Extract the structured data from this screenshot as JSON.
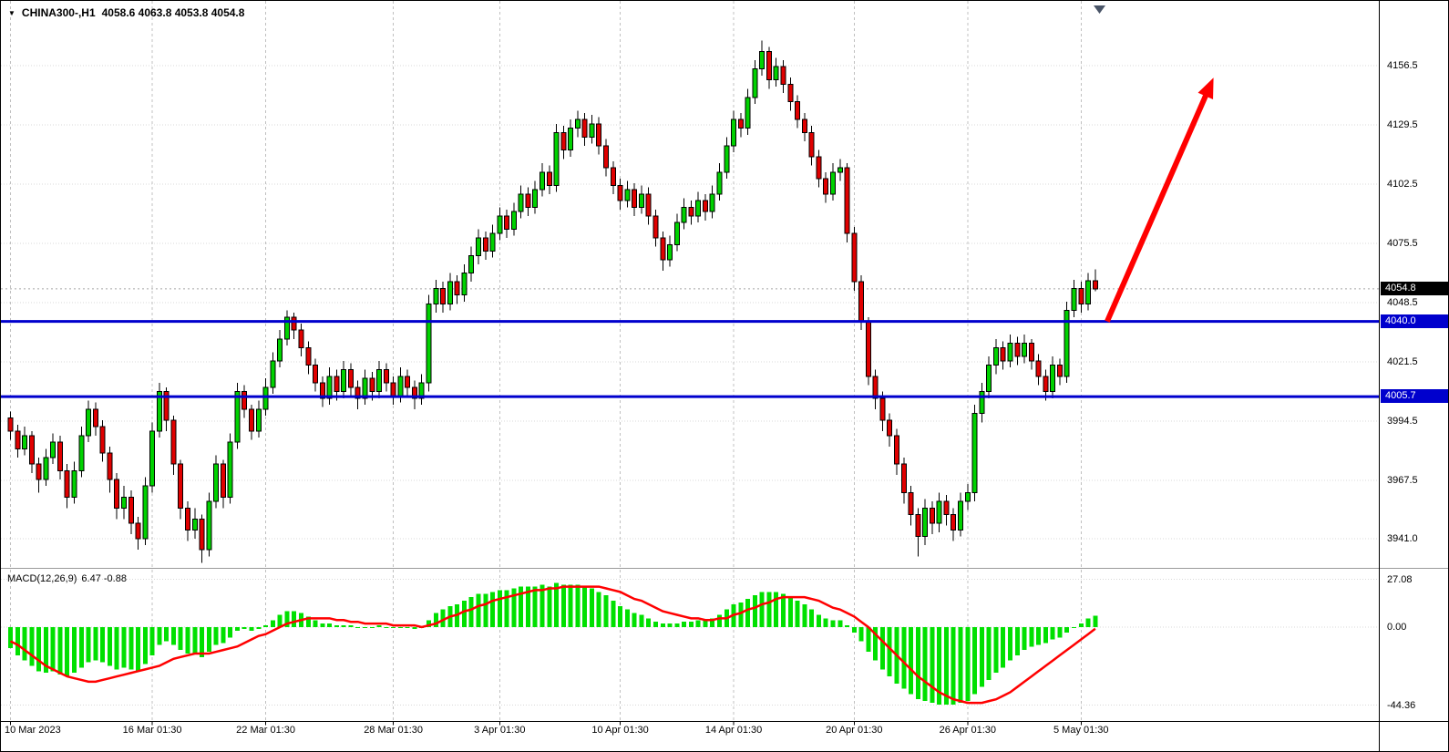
{
  "header": {
    "dropdown_icon": "▼",
    "symbol": "CHINA300-,H1",
    "ohlc_values": "4058.6 4063.8 4053.8 4054.8"
  },
  "indicator": {
    "label": "MACD(12,26,9)",
    "values": "6.47 -0.88"
  },
  "price_scale": {
    "labels": [
      "4156.5",
      "4129.5",
      "4102.5",
      "4075.5",
      "4048.5",
      "4021.5",
      "3994.5",
      "3967.5",
      "3941.0"
    ],
    "last_price_tag": "4054.8"
  },
  "macd_scale": {
    "labels": [
      "27.08",
      "0.00",
      "-44.36"
    ]
  },
  "colors": {
    "bull": "#00d200",
    "bear": "#e00000",
    "wick": "#000000",
    "grid_v": "#c0c0c0",
    "grid_h": "#d8d8d8",
    "last_price_line": "#a8a8a8",
    "hline": "#0000cd",
    "arrow": "#ff0000",
    "macd_hist": "#00e000",
    "macd_signal": "#ff0000",
    "shift_marker": "#4a5568"
  },
  "chart_data": {
    "type": "candlestick",
    "title": "CHINA300-,H1",
    "symbol": "CHINA300-",
    "timeframe": "H1",
    "ohlc_header": {
      "open": 4058.6,
      "high": 4063.8,
      "low": 4053.8,
      "close": 4054.8
    },
    "last_price": 4054.8,
    "ylim": [
      3929,
      4186
    ],
    "y_ticks": [
      4156.5,
      4129.5,
      4102.5,
      4075.5,
      4048.5,
      4021.5,
      3994.5,
      3967.5,
      3941.0
    ],
    "x_labels": [
      "10 Mar 2023",
      "16 Mar 01:30",
      "22 Mar 01:30",
      "28 Mar 01:30",
      "3 Apr 01:30",
      "10 Apr 01:30",
      "14 Apr 01:30",
      "20 Apr 01:30",
      "26 Apr 01:30",
      "5 May 01:30"
    ],
    "x_label_bars": [
      0,
      20,
      36,
      54,
      69,
      86,
      102,
      119,
      135,
      151
    ],
    "grid": true,
    "hlines": [
      {
        "price": 4040.0,
        "label": "4040.0"
      },
      {
        "price": 4005.7,
        "label": "4005.7"
      }
    ],
    "trend_arrow": {
      "from": {
        "bar": 155,
        "price": 4040
      },
      "to": {
        "bar": 170,
        "price": 4151
      }
    },
    "candles_ohlc": [
      [
        3996,
        3999,
        3986,
        3990
      ],
      [
        3990,
        3993,
        3978,
        3982
      ],
      [
        3982,
        3992,
        3979,
        3988
      ],
      [
        3988,
        3990,
        3971,
        3975
      ],
      [
        3975,
        3978,
        3962,
        3968
      ],
      [
        3968,
        3982,
        3965,
        3978
      ],
      [
        3978,
        3989,
        3975,
        3985
      ],
      [
        3985,
        3988,
        3968,
        3972
      ],
      [
        3972,
        3975,
        3955,
        3960
      ],
      [
        3960,
        3976,
        3957,
        3972
      ],
      [
        3972,
        3992,
        3969,
        3988
      ],
      [
        3988,
        4004,
        3985,
        4000
      ],
      [
        4000,
        4003,
        3988,
        3992
      ],
      [
        3992,
        3995,
        3976,
        3980
      ],
      [
        3980,
        3983,
        3962,
        3968
      ],
      [
        3968,
        3971,
        3950,
        3955
      ],
      [
        3955,
        3965,
        3950,
        3960
      ],
      [
        3960,
        3963,
        3943,
        3948
      ],
      [
        3948,
        3951,
        3936,
        3941
      ],
      [
        3941,
        3969,
        3938,
        3965
      ],
      [
        3965,
        3994,
        3962,
        3990
      ],
      [
        3990,
        4012,
        3987,
        4008
      ],
      [
        4008,
        4010,
        3990,
        3995
      ],
      [
        3995,
        3997,
        3970,
        3975
      ],
      [
        3975,
        3977,
        3950,
        3955
      ],
      [
        3955,
        3958,
        3940,
        3945
      ],
      [
        3945,
        3955,
        3941,
        3950
      ],
      [
        3950,
        3952,
        3930,
        3936
      ],
      [
        3936,
        3962,
        3933,
        3958
      ],
      [
        3958,
        3979,
        3955,
        3975
      ],
      [
        3975,
        3977,
        3955,
        3960
      ],
      [
        3960,
        3989,
        3957,
        3985
      ],
      [
        3985,
        4012,
        3982,
        4008
      ],
      [
        4008,
        4011,
        3996,
        4000
      ],
      [
        4000,
        4002,
        3986,
        3990
      ],
      [
        3990,
        4004,
        3987,
        4000
      ],
      [
        4000,
        4014,
        3997,
        4010
      ],
      [
        4010,
        4026,
        4007,
        4022
      ],
      [
        4022,
        4036,
        4019,
        4032
      ],
      [
        4032,
        4045,
        4029,
        4042
      ],
      [
        4042,
        4044,
        4032,
        4036
      ],
      [
        4036,
        4039,
        4024,
        4028
      ],
      [
        4028,
        4031,
        4016,
        4020
      ],
      [
        4020,
        4023,
        4008,
        4012
      ],
      [
        4012,
        4015,
        4001,
        4005
      ],
      [
        4005,
        4019,
        4002,
        4015
      ],
      [
        4015,
        4018,
        4004,
        4008
      ],
      [
        4008,
        4022,
        4005,
        4018
      ],
      [
        4018,
        4021,
        4006,
        4010
      ],
      [
        4010,
        4013,
        4000,
        4005
      ],
      [
        4005,
        4018,
        4002,
        4014
      ],
      [
        4014,
        4017,
        4004,
        4008
      ],
      [
        4008,
        4022,
        4005,
        4018
      ],
      [
        4018,
        4021,
        4008,
        4012
      ],
      [
        4012,
        4015,
        4002,
        4006
      ],
      [
        4006,
        4019,
        4003,
        4015
      ],
      [
        4015,
        4018,
        4006,
        4010
      ],
      [
        4010,
        4013,
        4000,
        4005
      ],
      [
        4005,
        4016,
        4002,
        4012
      ],
      [
        4012,
        4052,
        4008,
        4048
      ],
      [
        4048,
        4059,
        4044,
        4055
      ],
      [
        4055,
        4058,
        4044,
        4048
      ],
      [
        4048,
        4062,
        4045,
        4058
      ],
      [
        4058,
        4061,
        4048,
        4052
      ],
      [
        4052,
        4066,
        4049,
        4062
      ],
      [
        4062,
        4074,
        4058,
        4070
      ],
      [
        4070,
        4082,
        4066,
        4078
      ],
      [
        4078,
        4081,
        4068,
        4072
      ],
      [
        4072,
        4084,
        4069,
        4080
      ],
      [
        4080,
        4092,
        4077,
        4088
      ],
      [
        4088,
        4091,
        4078,
        4082
      ],
      [
        4082,
        4094,
        4079,
        4090
      ],
      [
        4090,
        4102,
        4087,
        4098
      ],
      [
        4098,
        4101,
        4088,
        4092
      ],
      [
        4092,
        4104,
        4089,
        4100
      ],
      [
        4100,
        4112,
        4097,
        4108
      ],
      [
        4108,
        4111,
        4098,
        4102
      ],
      [
        4102,
        4130,
        4099,
        4126
      ],
      [
        4126,
        4129,
        4114,
        4118
      ],
      [
        4118,
        4132,
        4115,
        4128
      ],
      [
        4128,
        4136,
        4124,
        4132
      ],
      [
        4132,
        4135,
        4120,
        4124
      ],
      [
        4124,
        4134,
        4121,
        4130
      ],
      [
        4130,
        4133,
        4116,
        4120
      ],
      [
        4120,
        4123,
        4106,
        4110
      ],
      [
        4110,
        4113,
        4098,
        4102
      ],
      [
        4102,
        4105,
        4091,
        4095
      ],
      [
        4095,
        4104,
        4092,
        4100
      ],
      [
        4100,
        4103,
        4088,
        4092
      ],
      [
        4092,
        4102,
        4089,
        4098
      ],
      [
        4098,
        4101,
        4084,
        4088
      ],
      [
        4088,
        4091,
        4074,
        4078
      ],
      [
        4078,
        4081,
        4063,
        4068
      ],
      [
        4068,
        4079,
        4065,
        4075
      ],
      [
        4075,
        4089,
        4072,
        4085
      ],
      [
        4085,
        4096,
        4082,
        4092
      ],
      [
        4092,
        4095,
        4084,
        4088
      ],
      [
        4088,
        4099,
        4085,
        4095
      ],
      [
        4095,
        4098,
        4086,
        4090
      ],
      [
        4090,
        4102,
        4087,
        4098
      ],
      [
        4098,
        4112,
        4095,
        4108
      ],
      [
        4108,
        4124,
        4105,
        4120
      ],
      [
        4120,
        4136,
        4117,
        4132
      ],
      [
        4132,
        4135,
        4124,
        4128
      ],
      [
        4128,
        4146,
        4125,
        4142
      ],
      [
        4142,
        4159,
        4139,
        4155
      ],
      [
        4155,
        4168,
        4152,
        4163
      ],
      [
        4163,
        4165,
        4146,
        4150
      ],
      [
        4150,
        4160,
        4147,
        4156
      ],
      [
        4156,
        4159,
        4144,
        4148
      ],
      [
        4148,
        4151,
        4136,
        4140
      ],
      [
        4140,
        4143,
        4128,
        4132
      ],
      [
        4132,
        4135,
        4122,
        4126
      ],
      [
        4126,
        4129,
        4111,
        4115
      ],
      [
        4115,
        4118,
        4101,
        4105
      ],
      [
        4105,
        4108,
        4094,
        4098
      ],
      [
        4098,
        4112,
        4095,
        4108
      ],
      [
        4108,
        4114,
        4104,
        4110
      ],
      [
        4110,
        4112,
        4076,
        4080
      ],
      [
        4080,
        4083,
        4054,
        4058
      ],
      [
        4058,
        4061,
        4036,
        4040
      ],
      [
        4040,
        4042,
        4011,
        4015
      ],
      [
        4015,
        4018,
        4000,
        4005
      ],
      [
        4005,
        4008,
        3990,
        3995
      ],
      [
        3995,
        3998,
        3983,
        3988
      ],
      [
        3988,
        3991,
        3970,
        3975
      ],
      [
        3975,
        3978,
        3957,
        3962
      ],
      [
        3962,
        3965,
        3947,
        3952
      ],
      [
        3952,
        3955,
        3933,
        3942
      ],
      [
        3942,
        3959,
        3938,
        3955
      ],
      [
        3955,
        3958,
        3943,
        3948
      ],
      [
        3948,
        3962,
        3944,
        3958
      ],
      [
        3958,
        3961,
        3947,
        3952
      ],
      [
        3952,
        3955,
        3940,
        3945
      ],
      [
        3945,
        3962,
        3942,
        3958
      ],
      [
        3958,
        3966,
        3954,
        3962
      ],
      [
        3962,
        4002,
        3958,
        3998
      ],
      [
        3998,
        4012,
        3994,
        4008
      ],
      [
        4008,
        4024,
        4005,
        4020
      ],
      [
        4020,
        4032,
        4016,
        4028
      ],
      [
        4028,
        4031,
        4018,
        4022
      ],
      [
        4022,
        4034,
        4019,
        4030
      ],
      [
        4030,
        4033,
        4020,
        4024
      ],
      [
        4024,
        4034,
        4021,
        4030
      ],
      [
        4030,
        4032,
        4018,
        4022
      ],
      [
        4022,
        4025,
        4011,
        4015
      ],
      [
        4015,
        4018,
        4004,
        4008
      ],
      [
        4008,
        4024,
        4005,
        4020
      ],
      [
        4020,
        4023,
        4011,
        4015
      ],
      [
        4015,
        4049,
        4012,
        4045
      ],
      [
        4045,
        4059,
        4042,
        4055
      ],
      [
        4055,
        4058,
        4044,
        4048
      ],
      [
        4048,
        4062,
        4045,
        4058.6
      ],
      [
        4058.6,
        4063.8,
        4053.8,
        4054.8
      ]
    ],
    "macd": {
      "params": [
        12,
        26,
        9
      ],
      "current_macd": 6.47,
      "current_signal": -0.88,
      "ylim": [
        -52,
        32
      ],
      "y_ticks": [
        27.08,
        0.0,
        -44.36
      ],
      "histogram": [
        -12,
        -16,
        -19,
        -22,
        -25,
        -26,
        -25,
        -27,
        -28,
        -26,
        -23,
        -20,
        -19,
        -20,
        -22,
        -24,
        -23,
        -24,
        -25,
        -21,
        -16,
        -10,
        -8,
        -10,
        -13,
        -15,
        -15,
        -17,
        -14,
        -10,
        -9,
        -6,
        -2,
        -1,
        -2,
        -1,
        1,
        4,
        7,
        9,
        9,
        8,
        6,
        4,
        2,
        2,
        1,
        1,
        1,
        0,
        0,
        0,
        1,
        0,
        0,
        0,
        0,
        -1,
        0,
        4,
        8,
        10,
        12,
        13,
        15,
        17,
        19,
        19,
        20,
        21,
        21,
        22,
        23,
        23,
        23,
        24,
        23,
        25,
        24,
        24,
        24,
        23,
        22,
        20,
        18,
        15,
        12,
        10,
        8,
        7,
        5,
        3,
        2,
        2,
        2,
        3,
        3,
        4,
        4,
        5,
        7,
        10,
        13,
        14,
        16,
        18,
        20,
        20,
        20,
        19,
        17,
        15,
        13,
        10,
        7,
        5,
        4,
        4,
        1,
        -3,
        -8,
        -14,
        -19,
        -24,
        -28,
        -32,
        -35,
        -38,
        -41,
        -42,
        -43,
        -44,
        -44,
        -44,
        -43,
        -42,
        -38,
        -34,
        -30,
        -26,
        -23,
        -19,
        -16,
        -13,
        -11,
        -10,
        -9,
        -7,
        -6,
        -3,
        0,
        2,
        5,
        6.47
      ],
      "signal": [
        -8,
        -10,
        -13,
        -16,
        -19,
        -22,
        -24,
        -26,
        -28,
        -29,
        -30,
        -31,
        -31,
        -30,
        -29,
        -28,
        -27,
        -26,
        -25,
        -24,
        -23,
        -22,
        -20,
        -18,
        -17,
        -16,
        -15,
        -15,
        -15,
        -14,
        -13,
        -12,
        -11,
        -9,
        -7,
        -5,
        -4,
        -2,
        0,
        2,
        3,
        4,
        5,
        5,
        5,
        5,
        4,
        4,
        3,
        3,
        2,
        2,
        2,
        2,
        1,
        1,
        1,
        1,
        0,
        1,
        2,
        4,
        6,
        7,
        9,
        10,
        12,
        13,
        15,
        16,
        17,
        18,
        19,
        20,
        21,
        21,
        22,
        22,
        23,
        23,
        23,
        23,
        23,
        23,
        22,
        21,
        20,
        18,
        16,
        15,
        13,
        11,
        9,
        8,
        7,
        6,
        5,
        5,
        4,
        4,
        5,
        5,
        7,
        8,
        10,
        11,
        13,
        14,
        16,
        17,
        17,
        17,
        17,
        16,
        15,
        13,
        11,
        10,
        8,
        6,
        3,
        0,
        -4,
        -8,
        -12,
        -16,
        -20,
        -24,
        -28,
        -31,
        -34,
        -37,
        -39,
        -41,
        -42,
        -43,
        -43,
        -43,
        -42,
        -41,
        -39,
        -37,
        -34,
        -31,
        -28,
        -25,
        -22,
        -19,
        -16,
        -13,
        -10,
        -7,
        -4,
        -0.88
      ]
    }
  }
}
